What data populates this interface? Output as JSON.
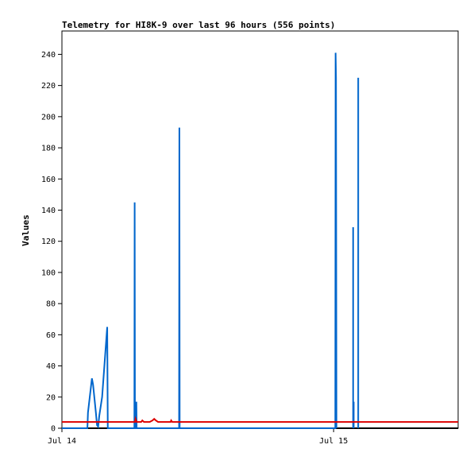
{
  "chart_data": {
    "type": "line",
    "title": "Telemetry for HI8K-9 over last 96 hours (556 points)",
    "xlabel": "",
    "ylabel": "Values",
    "x_ticks": [
      "Jul 14",
      "Jul 15"
    ],
    "y_ticks": [
      0,
      20,
      40,
      60,
      80,
      100,
      120,
      140,
      160,
      180,
      200,
      220,
      240
    ],
    "x_range_hours": [
      0,
      48.5
    ],
    "ylim": [
      0,
      255
    ],
    "grid": false,
    "legend": "none",
    "series": [
      {
        "color": "#0066cc",
        "points": [
          [
            0,
            0
          ],
          [
            4.5,
            0
          ],
          [
            4.6,
            10
          ],
          [
            5.3,
            32
          ],
          [
            5.5,
            28
          ],
          [
            6.0,
            10
          ],
          [
            6.2,
            2
          ],
          [
            6.4,
            1
          ],
          [
            6.6,
            8
          ],
          [
            7.1,
            20
          ],
          [
            7.8,
            55
          ],
          [
            8.0,
            65
          ],
          [
            8.1,
            0
          ],
          [
            12.8,
            0
          ],
          [
            12.85,
            145
          ],
          [
            12.9,
            0
          ],
          [
            13.1,
            0
          ],
          [
            13.15,
            17
          ],
          [
            13.2,
            0
          ],
          [
            20.7,
            0
          ],
          [
            20.75,
            193
          ],
          [
            20.8,
            0
          ],
          [
            48.3,
            0
          ],
          [
            48.35,
            241
          ],
          [
            48.42,
            225
          ],
          [
            48.5,
            0
          ]
        ]
      },
      {
        "color": "#dd0000",
        "points": [
          [
            0,
            4
          ],
          [
            12.9,
            4
          ],
          [
            13.0,
            6
          ],
          [
            13.2,
            4
          ],
          [
            13.6,
            4
          ],
          [
            14.0,
            4
          ],
          [
            14.2,
            5
          ],
          [
            14.5,
            4
          ],
          [
            15.5,
            4
          ],
          [
            16.0,
            5
          ],
          [
            16.3,
            6
          ],
          [
            16.6,
            5
          ],
          [
            17.0,
            4
          ],
          [
            18.0,
            4
          ],
          [
            19.2,
            4
          ],
          [
            19.3,
            5
          ],
          [
            19.5,
            4
          ],
          [
            20.6,
            4
          ],
          [
            20.9,
            4
          ],
          [
            55,
            4
          ],
          [
            70,
            4
          ]
        ]
      },
      {
        "color": "#000000",
        "points": [
          [
            0,
            0
          ],
          [
            70,
            0
          ]
        ]
      }
    ],
    "extra_spikes": [
      {
        "x": 51.45,
        "y": 129
      },
      {
        "x": 51.55,
        "y": 17
      },
      {
        "x": 52.35,
        "y": 225
      }
    ],
    "baseline_value": 0,
    "series_colors": {
      "blue": "#0066cc",
      "red": "#dd0000",
      "axis": "#000000"
    }
  }
}
